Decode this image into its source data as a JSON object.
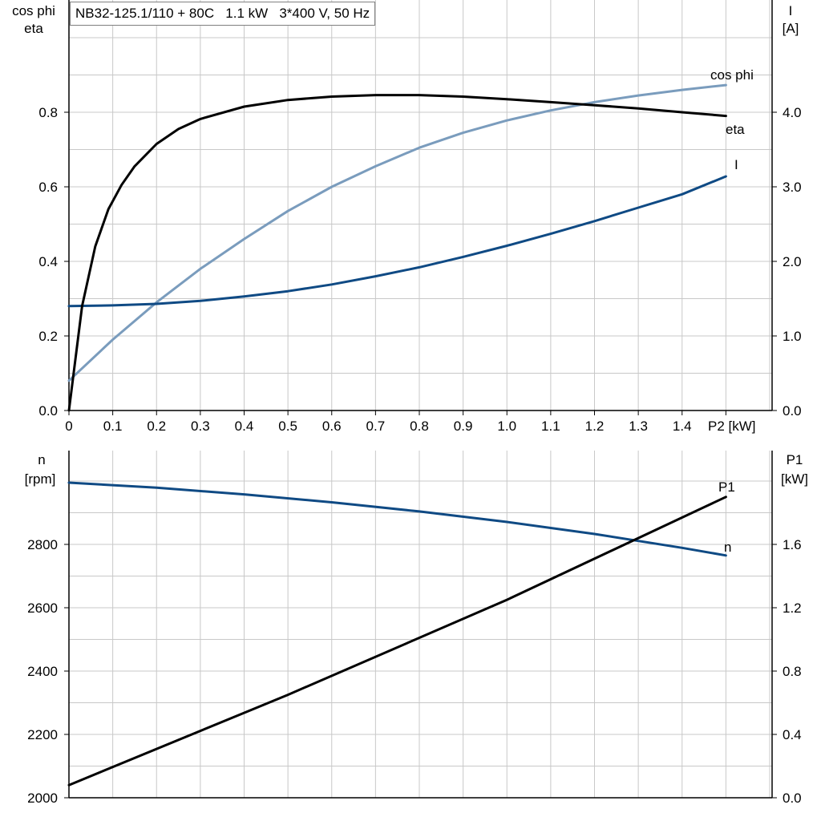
{
  "title": "NB32-125.1/110 + 80C   1.1 kW   3*400 V, 50 Hz",
  "colors": {
    "eta": "#000000",
    "cos_phi": "#7a9cbd",
    "I": "#0f4a84",
    "n": "#0f4a84",
    "P1": "#000000",
    "grid": "#c8c8c8"
  },
  "chart_data": [
    {
      "type": "line",
      "left_axis_label": [
        "cos phi",
        "eta"
      ],
      "right_axis_label": [
        "I",
        "[A]"
      ],
      "xlabel": "P2 [kW]",
      "x_tick_labels": [
        "0",
        "0.1",
        "0.2",
        "0.3",
        "0.4",
        "0.5",
        "0.6",
        "0.7",
        "0.8",
        "0.9",
        "1.0",
        "1.1",
        "1.2",
        "1.3",
        "1.4",
        "P2 [kW]"
      ],
      "left_tick_labels": [
        "0.0",
        "0.2",
        "0.4",
        "0.6",
        "0.8"
      ],
      "right_tick_labels": [
        "0.0",
        "1.0",
        "2.0",
        "3.0",
        "4.0"
      ],
      "xlim": [
        0,
        1.6
      ],
      "ylim_left": [
        0,
        1.0
      ],
      "ylim_right": [
        0,
        5.0
      ],
      "grid": true,
      "series": [
        {
          "name": "eta",
          "axis": "left",
          "x": [
            0,
            0.03,
            0.06,
            0.09,
            0.12,
            0.15,
            0.2,
            0.25,
            0.3,
            0.4,
            0.5,
            0.6,
            0.7,
            0.8,
            0.9,
            1.0,
            1.1,
            1.2,
            1.3,
            1.4,
            1.5
          ],
          "y": [
            0,
            0.28,
            0.44,
            0.54,
            0.605,
            0.655,
            0.715,
            0.755,
            0.782,
            0.815,
            0.833,
            0.842,
            0.846,
            0.846,
            0.842,
            0.835,
            0.827,
            0.819,
            0.81,
            0.8,
            0.79
          ]
        },
        {
          "name": "cos phi",
          "axis": "left",
          "x": [
            0,
            0.1,
            0.2,
            0.3,
            0.4,
            0.5,
            0.6,
            0.7,
            0.8,
            0.9,
            1.0,
            1.1,
            1.2,
            1.3,
            1.4,
            1.5
          ],
          "y": [
            0.08,
            0.19,
            0.29,
            0.38,
            0.46,
            0.535,
            0.6,
            0.655,
            0.705,
            0.745,
            0.778,
            0.805,
            0.827,
            0.845,
            0.86,
            0.873
          ]
        },
        {
          "name": "I",
          "axis": "right",
          "x": [
            0,
            0.1,
            0.2,
            0.3,
            0.4,
            0.5,
            0.6,
            0.7,
            0.8,
            0.9,
            1.0,
            1.1,
            1.2,
            1.3,
            1.4,
            1.5
          ],
          "y": [
            1.4,
            1.41,
            1.43,
            1.47,
            1.53,
            1.6,
            1.69,
            1.8,
            1.92,
            2.06,
            2.21,
            2.37,
            2.54,
            2.72,
            2.9,
            3.14
          ]
        }
      ]
    },
    {
      "type": "line",
      "left_axis_label": [
        "n",
        "[rpm]"
      ],
      "right_axis_label": [
        "P1",
        "[kW]"
      ],
      "left_tick_labels": [
        "2000",
        "2200",
        "2400",
        "2600",
        "2800"
      ],
      "right_tick_labels": [
        "0.0",
        "0.4",
        "0.8",
        "1.2",
        "1.6"
      ],
      "xlim": [
        0,
        1.6
      ],
      "ylim_left": [
        2000,
        3100
      ],
      "ylim_right": [
        0,
        2.2
      ],
      "grid": true,
      "series": [
        {
          "name": "n",
          "axis": "left",
          "x": [
            0,
            0.2,
            0.4,
            0.6,
            0.8,
            1.0,
            1.2,
            1.4,
            1.5
          ],
          "y": [
            2995,
            2979,
            2958,
            2933,
            2904,
            2871,
            2833,
            2789,
            2765
          ]
        },
        {
          "name": "P1",
          "axis": "right",
          "x": [
            0,
            0.5,
            1.0,
            1.5
          ],
          "y": [
            0.08,
            0.65,
            1.25,
            1.9
          ]
        }
      ]
    }
  ]
}
